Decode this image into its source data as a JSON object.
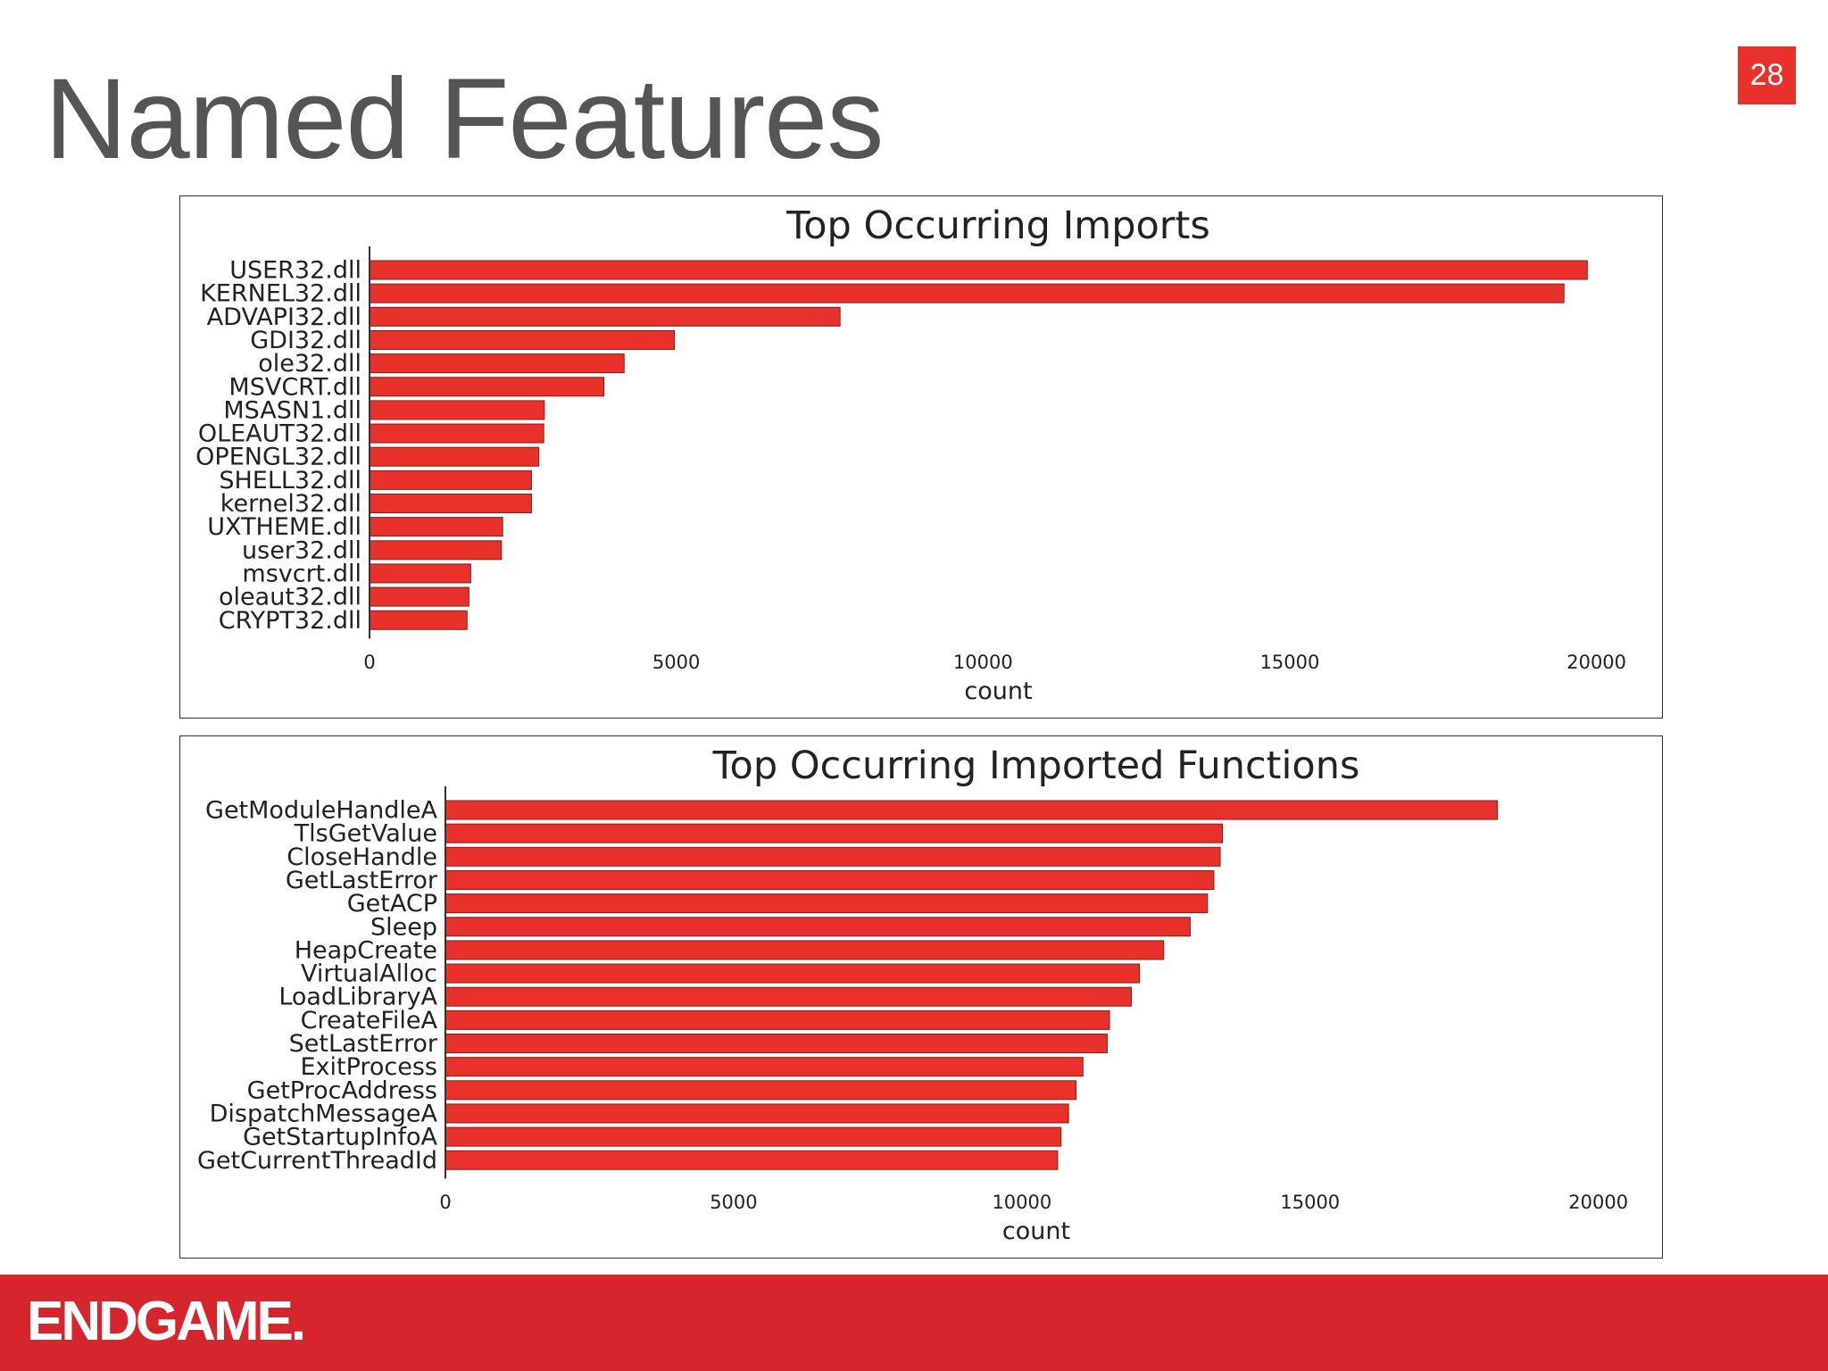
{
  "slide": {
    "title": "Named Features",
    "page_number": "28",
    "footer_logo": "ENDGAME."
  },
  "colors": {
    "accent": "#e8312a",
    "bar_fill": "#e8312a",
    "bar_stroke": "#8a1a14",
    "footer": "#d7252e",
    "title": "#555555",
    "text": "#222222"
  },
  "chart_data": [
    {
      "type": "bar",
      "orientation": "horizontal",
      "title": "Top Occurring Imports",
      "xlabel": "count",
      "ylabel": "",
      "xlim": [
        0,
        20500
      ],
      "xticks": [
        0,
        5000,
        10000,
        15000,
        20000
      ],
      "grid": false,
      "categories": [
        "USER32.dll",
        "KERNEL32.dll",
        "ADVAPI32.dll",
        "GDI32.dll",
        "ole32.dll",
        "MSVCRT.dll",
        "MSASN1.dll",
        "OLEAUT32.dll",
        "OPENGL32.dll",
        "SHELL32.dll",
        "kernel32.dll",
        "UXTHEME.dll",
        "user32.dll",
        "msvcrt.dll",
        "oleaut32.dll",
        "CRYPT32.dll"
      ],
      "values": [
        19850,
        19470,
        7670,
        4970,
        4150,
        3820,
        2850,
        2840,
        2760,
        2640,
        2640,
        2170,
        2150,
        1650,
        1620,
        1590
      ]
    },
    {
      "type": "bar",
      "orientation": "horizontal",
      "title": "Top Occurring Imported Functions",
      "xlabel": "count",
      "ylabel": "",
      "xlim": [
        0,
        20500
      ],
      "xticks": [
        0,
        5000,
        10000,
        15000,
        20000
      ],
      "grid": false,
      "categories": [
        "GetModuleHandleA",
        "TlsGetValue",
        "CloseHandle",
        "GetLastError",
        "GetACP",
        "Sleep",
        "HeapCreate",
        "VirtualAlloc",
        "LoadLibraryA",
        "CreateFileA",
        "SetLastError",
        "ExitProcess",
        "GetProcAddress",
        "DispatchMessageA",
        "GetStartupInfoA",
        "GetCurrentThreadId"
      ],
      "values": [
        18250,
        13480,
        13440,
        13330,
        13220,
        12920,
        12460,
        12040,
        11900,
        11520,
        11480,
        11060,
        10940,
        10810,
        10680,
        10620
      ]
    }
  ]
}
